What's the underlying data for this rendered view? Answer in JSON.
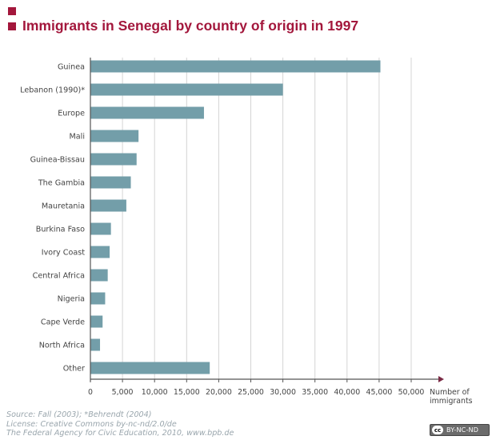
{
  "title": "Immigrants in Senegal by country of origin in 1997",
  "chart_data": {
    "type": "bar",
    "orientation": "horizontal",
    "categories": [
      "Guinea",
      "Lebanon (1990)*",
      "Europe",
      "Mali",
      "Guinea-Bissau",
      "The Gambia",
      "Mauretania",
      "Burkina Faso",
      "Ivory Coast",
      "Central Africa",
      "Nigeria",
      "Cape Verde",
      "North Africa",
      "Other"
    ],
    "values": [
      45200,
      30000,
      17700,
      7500,
      7200,
      6300,
      5600,
      3200,
      3000,
      2700,
      2300,
      1900,
      1500,
      18600
    ],
    "xlim": [
      0,
      55000
    ],
    "xticks": [
      0,
      5000,
      10000,
      15000,
      20000,
      25000,
      30000,
      35000,
      40000,
      45000,
      50000
    ],
    "xtick_labels": [
      "0",
      "5,000",
      "10,000",
      "15,000",
      "20,000",
      "25,000",
      "30,000",
      "35,000",
      "40,000",
      "45,000",
      "50,000"
    ],
    "xlabel_line1": "Number of",
    "xlabel_line2": "immigrants",
    "grid": "vertical",
    "bar_color": "#739ea9"
  },
  "footer": {
    "source": "Source: Fall (2003); *Behrendt (2004)",
    "license": "License: Creative Commons by-nc-nd/2.0/de",
    "publisher": "The Federal Agency for Civic Education, 2010, www.bpb.de"
  },
  "badge": {
    "cc": "cc",
    "text": "BY-NC-ND"
  },
  "colors": {
    "title": "#a3173c",
    "grid": "#d4d4d4",
    "axis": "#555555",
    "arrow": "#7a2a45"
  }
}
